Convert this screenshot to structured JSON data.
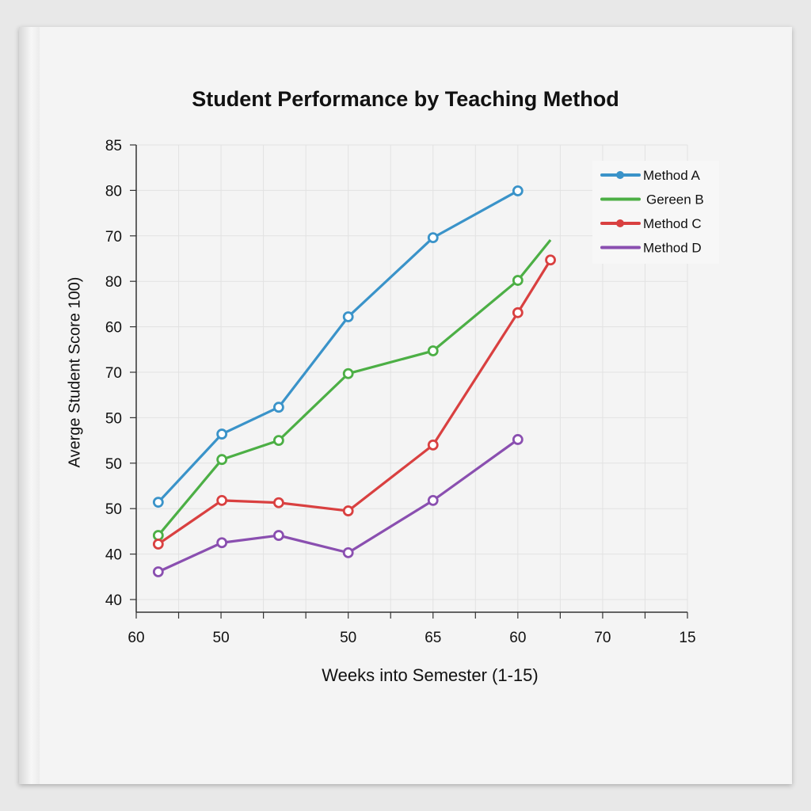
{
  "chart_data": {
    "type": "line",
    "title": "Student Performance by Teaching Method",
    "xlabel": "Weeks into Semester (1-15)",
    "ylabel": "Averge Student Score 100)",
    "x_tick_labels": [
      "60",
      "50",
      "50",
      "65",
      "60",
      "70",
      "15"
    ],
    "x_tick_positions": [
      0,
      2,
      5,
      7,
      9,
      11,
      13
    ],
    "xlim": [
      0,
      13
    ],
    "y_tick_labels": [
      "40",
      "40",
      "50",
      "50",
      "50",
      "70",
      "60",
      "80",
      "70",
      "80",
      "85"
    ],
    "y_tick_positions": [
      0,
      1,
      2,
      3,
      4,
      5,
      6,
      7,
      8,
      9,
      10
    ],
    "ylim": [
      -0.28,
      10
    ],
    "grid": true,
    "legend_placement": "top-right",
    "series": [
      {
        "name": "Method A",
        "color": "#3a93c9",
        "marker": true,
        "x": [
          0.52,
          2.02,
          3.36,
          5.0,
          7.0,
          9.0
        ],
        "y": [
          2.14,
          3.64,
          4.23,
          6.22,
          7.96,
          8.99
        ],
        "markers": [
          1,
          1,
          1,
          1,
          1,
          1
        ]
      },
      {
        "name": "Gereen B",
        "color": "#4caf45",
        "marker": false,
        "x": [
          0.52,
          2.02,
          3.36,
          5.0,
          7.0,
          9.0,
          9.77
        ],
        "y": [
          1.41,
          3.08,
          3.5,
          4.97,
          5.47,
          7.02,
          7.91
        ],
        "markers": [
          1,
          1,
          1,
          1,
          1,
          1,
          0
        ]
      },
      {
        "name": "Method C",
        "color": "#d94040",
        "marker": true,
        "x": [
          0.52,
          2.02,
          3.36,
          5.0,
          7.0,
          9.0,
          9.77
        ],
        "y": [
          1.22,
          2.18,
          2.13,
          1.95,
          3.4,
          6.31,
          7.47
        ],
        "markers": [
          1,
          1,
          1,
          1,
          1,
          1,
          1
        ]
      },
      {
        "name": "Method D",
        "color": "#8a4fb0",
        "marker": false,
        "x": [
          0.52,
          2.02,
          3.36,
          5.0,
          7.0,
          9.0
        ],
        "y": [
          0.61,
          1.25,
          1.41,
          1.03,
          2.18,
          3.52
        ],
        "markers": [
          1,
          1,
          1,
          1,
          1,
          1
        ]
      }
    ]
  }
}
